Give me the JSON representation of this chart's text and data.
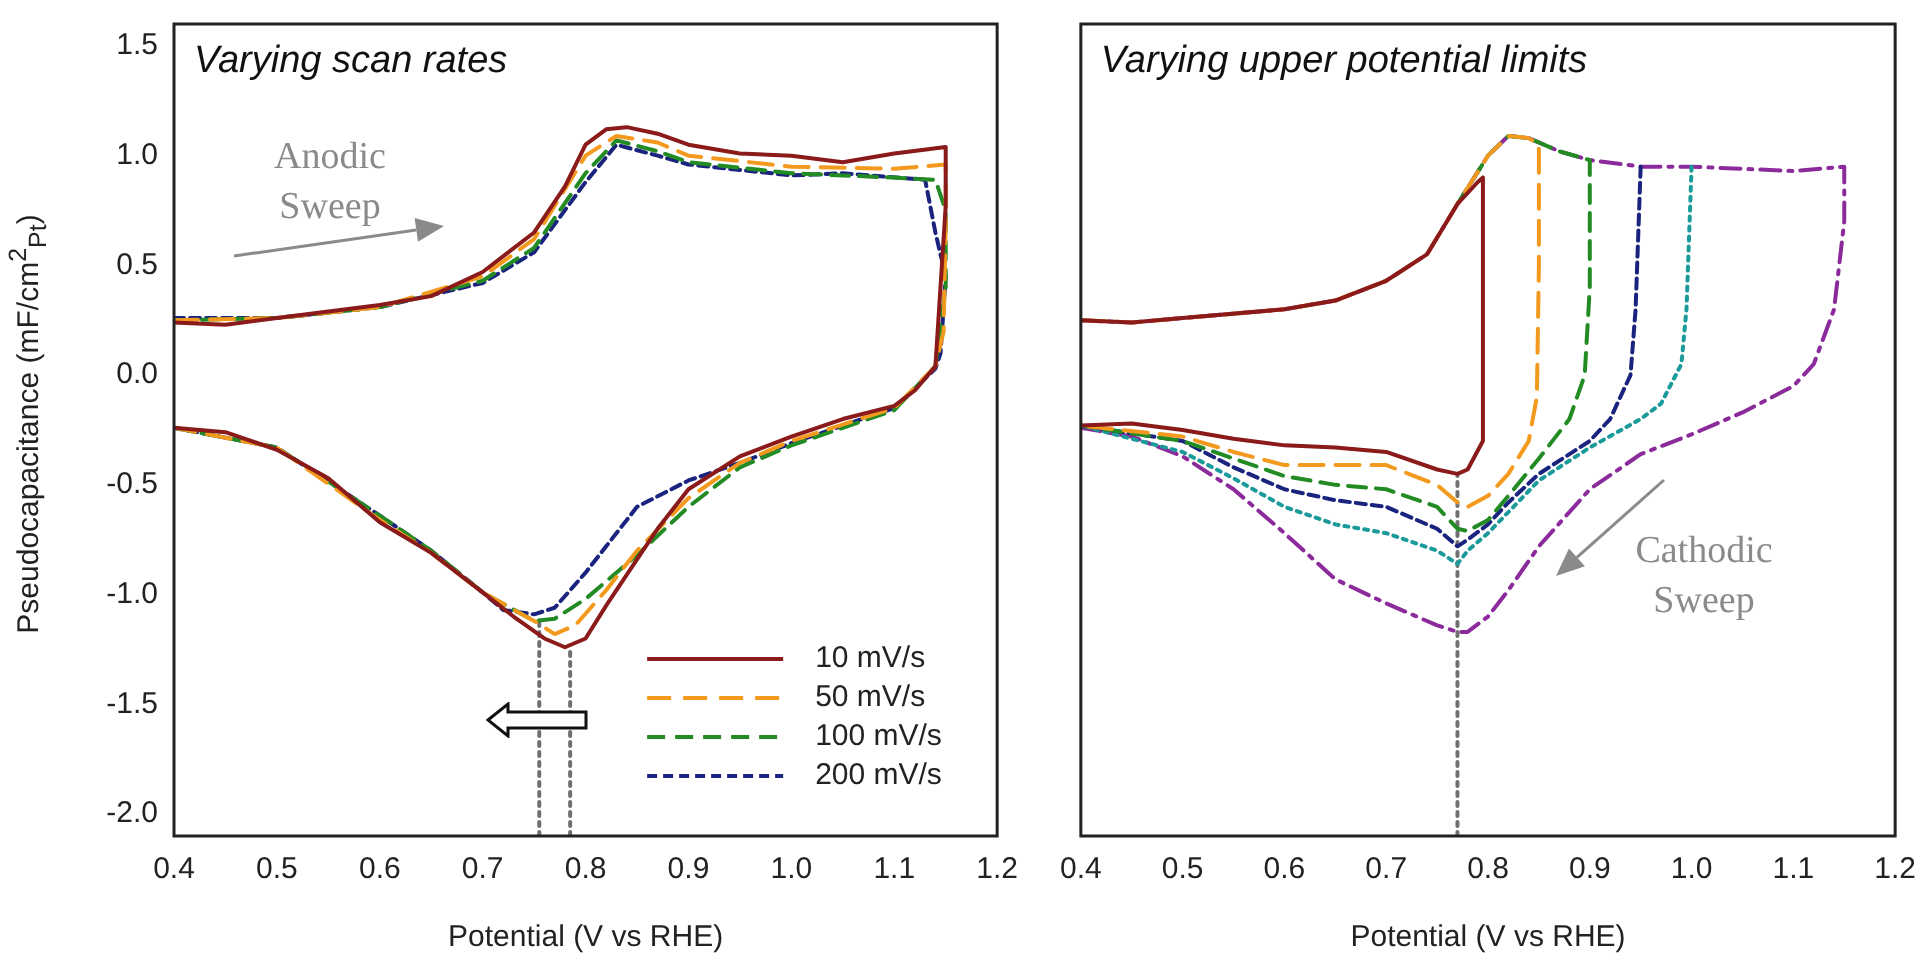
{
  "chart_data": [
    {
      "type": "line",
      "title": "Varying scan rates",
      "xlabel": "Potential (V vs RHE)",
      "ylabel": "Pseudocapacitance (mF/cm$^{2}$$_{Pt}$)",
      "xlim": [
        0.4,
        1.2
      ],
      "ylim": [
        -2.1,
        1.6
      ],
      "xticks": [
        0.4,
        0.5,
        0.6,
        0.7,
        0.8,
        0.9,
        {
          "value": 1,
          "label": "1.0"
        },
        1.1,
        1.2
      ],
      "yticks": [
        {
          "value": -2,
          "label": "-2.0"
        },
        -1.5,
        {
          "value": -1,
          "label": "-1.0"
        },
        -0.5,
        {
          "value": 0,
          "label": "0.0"
        },
        0.5,
        {
          "value": 1,
          "label": "1.0"
        },
        1.5
      ],
      "legend": "bottom right",
      "marker": "none",
      "annotations": [
        "Anodic Sweep"
      ],
      "series": [
        {
          "name": "10 mV/s",
          "color": "#8b1a1a",
          "line_style": "solid",
          "x": [
            0.4,
            0.45,
            0.5,
            0.6,
            0.65,
            0.7,
            0.75,
            0.78,
            0.8,
            0.82,
            0.84,
            0.87,
            0.9,
            0.95,
            1.0,
            1.05,
            1.1,
            1.15,
            1.15,
            1.14,
            1.12,
            1.1,
            1.05,
            1.0,
            0.95,
            0.9,
            0.87,
            0.85,
            0.82,
            0.8,
            0.78,
            0.76,
            0.73,
            0.7,
            0.65,
            0.6,
            0.55,
            0.5,
            0.45,
            0.4
          ],
          "values": [
            0.24,
            0.23,
            0.26,
            0.32,
            0.36,
            0.47,
            0.65,
            0.86,
            1.05,
            1.12,
            1.13,
            1.1,
            1.05,
            1.01,
            1.0,
            0.97,
            1.01,
            1.04,
            0.77,
            0.04,
            -0.07,
            -0.14,
            -0.2,
            -0.28,
            -0.37,
            -0.52,
            -0.7,
            -0.84,
            -1.05,
            -1.2,
            -1.24,
            -1.2,
            -1.1,
            -0.99,
            -0.81,
            -0.67,
            -0.47,
            -0.34,
            -0.26,
            -0.24
          ]
        },
        {
          "name": "50 mV/s",
          "color": "#f39a1e",
          "line_style": "dashed",
          "x": [
            0.4,
            0.5,
            0.6,
            0.7,
            0.75,
            0.8,
            0.83,
            0.87,
            0.9,
            1.0,
            1.1,
            1.15,
            1.15,
            1.148,
            1.14,
            1.1,
            1.0,
            0.95,
            0.9,
            0.85,
            0.82,
            0.79,
            0.77,
            0.75,
            0.7,
            0.65,
            0.6,
            0.5,
            0.4
          ],
          "values": [
            0.25,
            0.26,
            0.31,
            0.45,
            0.62,
            1.0,
            1.09,
            1.06,
            1.0,
            0.95,
            0.94,
            0.96,
            0.7,
            0.2,
            0.04,
            -0.15,
            -0.3,
            -0.4,
            -0.56,
            -0.8,
            -0.98,
            -1.14,
            -1.18,
            -1.12,
            -0.99,
            -0.81,
            -0.66,
            -0.33,
            -0.24
          ]
        },
        {
          "name": "100 mV/s",
          "color": "#238b23",
          "line_style": "dashed",
          "x": [
            0.4,
            0.5,
            0.6,
            0.7,
            0.75,
            0.8,
            0.83,
            0.87,
            0.9,
            1.0,
            1.1,
            1.14,
            1.15,
            1.15,
            1.14,
            1.1,
            1.0,
            0.95,
            0.9,
            0.85,
            0.8,
            0.77,
            0.75,
            0.7,
            0.65,
            0.6,
            0.5,
            0.4
          ],
          "values": [
            0.25,
            0.26,
            0.31,
            0.43,
            0.58,
            0.92,
            1.07,
            1.02,
            0.97,
            0.92,
            0.9,
            0.89,
            0.75,
            0.4,
            0.04,
            -0.16,
            -0.32,
            -0.42,
            -0.6,
            -0.82,
            -1.02,
            -1.11,
            -1.12,
            -0.99,
            -0.8,
            -0.64,
            -0.33,
            -0.24
          ]
        },
        {
          "name": "200 mV/s",
          "color": "#1a237e",
          "line_style": "dashed",
          "x": [
            0.4,
            0.5,
            0.6,
            0.7,
            0.75,
            0.8,
            0.83,
            0.87,
            0.9,
            1.0,
            1.05,
            1.13,
            1.14,
            1.15,
            1.145,
            1.14,
            1.1,
            1.0,
            0.95,
            0.9,
            0.85,
            0.82,
            0.8,
            0.77,
            0.75,
            0.72,
            0.7,
            0.65,
            0.6,
            0.5,
            0.4
          ],
          "values": [
            0.26,
            0.26,
            0.31,
            0.42,
            0.56,
            0.88,
            1.05,
            1.0,
            0.96,
            0.91,
            0.92,
            0.89,
            0.65,
            0.45,
            0.1,
            0.03,
            -0.15,
            -0.31,
            -0.4,
            -0.48,
            -0.6,
            -0.78,
            -0.9,
            -1.06,
            -1.09,
            -1.07,
            -0.99,
            -0.8,
            -0.64,
            -0.33,
            -0.24
          ]
        },
        {
          "color": "#707070",
          "line_style": "dotted",
          "x": [
            0.755,
            0.755
          ],
          "values": [
            -2.1,
            -1.12
          ]
        },
        {
          "color": "#707070",
          "line_style": "dotted",
          "x": [
            0.785,
            0.785
          ],
          "values": [
            -2.1,
            -1.24
          ]
        }
      ]
    },
    {
      "type": "line",
      "title": "Varying upper potential limits",
      "xlabel": "Potential (V vs RHE)",
      "xlim": [
        0.4,
        1.2
      ],
      "ylim": [
        -2.1,
        1.6
      ],
      "xticks": [
        0.4,
        0.5,
        0.6,
        0.7,
        0.8,
        0.9,
        {
          "value": 1,
          "label": "1.0"
        },
        1.1,
        1.2
      ],
      "yticks": [
        {
          "value": -2,
          "label": null
        },
        {
          "value": -1.5,
          "label": null
        },
        {
          "value": -1,
          "label": null
        },
        {
          "value": -0.5,
          "label": null
        },
        {
          "value": 0,
          "label": null
        },
        {
          "value": 0.5,
          "label": null
        },
        {
          "value": 1,
          "label": null
        },
        {
          "value": 1.5,
          "label": null
        }
      ],
      "tick_labels": "x",
      "marker": "none",
      "annotations": [
        "Cathodic Sweep"
      ],
      "series": [
        {
          "color": "#8b1a1a",
          "line_style": "solid",
          "x": [
            0.4,
            0.45,
            0.5,
            0.6,
            0.65,
            0.7,
            0.74,
            0.77,
            0.79,
            0.795,
            0.795,
            0.78,
            0.77,
            0.75,
            0.7,
            0.65,
            0.6,
            0.55,
            0.5,
            0.45,
            0.4
          ],
          "values": [
            0.25,
            0.24,
            0.26,
            0.3,
            0.34,
            0.43,
            0.55,
            0.78,
            0.88,
            0.9,
            -0.3,
            -0.43,
            -0.45,
            -0.43,
            -0.35,
            -0.33,
            -0.32,
            -0.29,
            -0.25,
            -0.22,
            -0.23
          ]
        },
        {
          "color": "#f39a1e",
          "line_style": "dashed",
          "x": [
            0.4,
            0.45,
            0.5,
            0.6,
            0.65,
            0.7,
            0.74,
            0.77,
            0.8,
            0.82,
            0.84,
            0.85,
            0.85,
            0.848,
            0.84,
            0.82,
            0.8,
            0.78,
            0.77,
            0.75,
            0.7,
            0.6,
            0.55,
            0.5,
            0.4
          ],
          "values": [
            0.25,
            0.24,
            0.26,
            0.3,
            0.34,
            0.43,
            0.55,
            0.78,
            1.0,
            1.09,
            1.08,
            1.05,
            0.5,
            -0.1,
            -0.3,
            -0.45,
            -0.55,
            -0.6,
            -0.58,
            -0.5,
            -0.41,
            -0.41,
            -0.35,
            -0.28,
            -0.23
          ]
        },
        {
          "color": "#238b23",
          "line_style": "dashed",
          "x": [
            0.77,
            0.8,
            0.82,
            0.84,
            0.87,
            0.9,
            0.9,
            0.895,
            0.88,
            0.85,
            0.82,
            0.8,
            0.78,
            0.77,
            0.75,
            0.7,
            0.65,
            0.6,
            0.55,
            0.5,
            0.4
          ],
          "values": [
            0.78,
            1.0,
            1.09,
            1.08,
            1.02,
            0.98,
            0.4,
            0.0,
            -0.2,
            -0.38,
            -0.55,
            -0.66,
            -0.71,
            -0.7,
            -0.6,
            -0.52,
            -0.5,
            -0.46,
            -0.38,
            -0.3,
            -0.23
          ]
        },
        {
          "color": "#1a237e",
          "line_style": "dashed",
          "x": [
            0.95,
            0.945,
            0.94,
            0.92,
            0.9,
            0.85,
            0.82,
            0.8,
            0.78,
            0.77,
            0.75,
            0.7,
            0.65,
            0.6,
            0.55,
            0.5,
            0.4
          ],
          "values": [
            0.95,
            0.3,
            0.0,
            -0.2,
            -0.3,
            -0.45,
            -0.58,
            -0.68,
            -0.75,
            -0.78,
            -0.7,
            -0.6,
            -0.57,
            -0.52,
            -0.42,
            -0.3,
            -0.23
          ]
        },
        {
          "color": "#1a9a9a",
          "line_style": "dotted",
          "x": [
            1.0,
            0.995,
            0.99,
            0.97,
            0.95,
            0.9,
            0.85,
            0.8,
            0.78,
            0.77,
            0.75,
            0.7,
            0.65,
            0.6,
            0.55,
            0.5,
            0.4
          ],
          "values": [
            0.95,
            0.3,
            0.05,
            -0.13,
            -0.2,
            -0.33,
            -0.48,
            -0.72,
            -0.8,
            -0.86,
            -0.8,
            -0.72,
            -0.68,
            -0.6,
            -0.47,
            -0.35,
            -0.23
          ]
        },
        {
          "color": "#8b2a9b",
          "line_style": "dashdot",
          "x": [
            0.4,
            0.45,
            0.5,
            0.6,
            0.65,
            0.7,
            0.74,
            0.77,
            0.8,
            0.82,
            0.84,
            0.87,
            0.9,
            0.95,
            1.0,
            1.05,
            1.1,
            1.15,
            1.15,
            1.14,
            1.12,
            1.1,
            1.05,
            1.0,
            0.95,
            0.9,
            0.85,
            0.82,
            0.8,
            0.78,
            0.77,
            0.75,
            0.7,
            0.65,
            0.6,
            0.55,
            0.5,
            0.45,
            0.4
          ],
          "values": [
            0.25,
            0.24,
            0.26,
            0.3,
            0.34,
            0.43,
            0.55,
            0.78,
            1.0,
            1.09,
            1.08,
            1.02,
            0.98,
            0.95,
            0.95,
            0.94,
            0.93,
            0.95,
            0.7,
            0.3,
            0.05,
            -0.05,
            -0.17,
            -0.27,
            -0.36,
            -0.52,
            -0.78,
            -0.98,
            -1.1,
            -1.17,
            -1.17,
            -1.14,
            -1.04,
            -0.93,
            -0.72,
            -0.52,
            -0.37,
            -0.28,
            -0.24
          ]
        },
        {
          "color": "#707070",
          "line_style": "dotted",
          "x": [
            0.77,
            0.77
          ],
          "values": [
            -2.1,
            -0.45
          ]
        }
      ]
    }
  ]
}
